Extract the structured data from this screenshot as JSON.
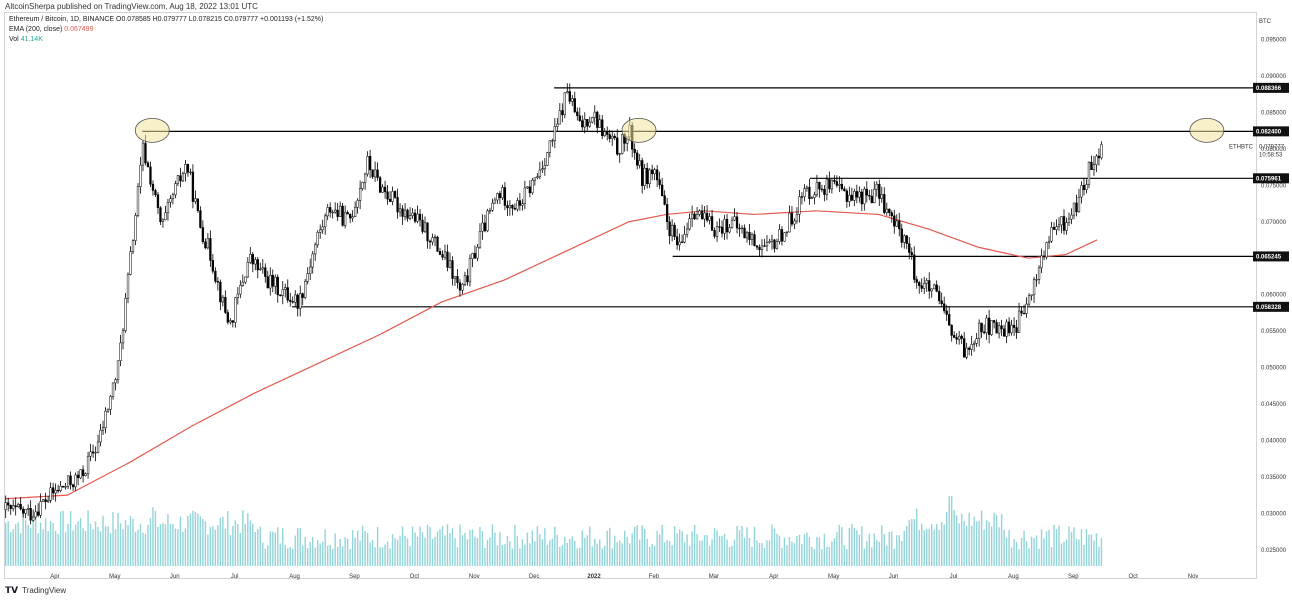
{
  "header": {
    "published": "AltcoinSherpa published on TradingView.com, Aug 18, 2022 13:01 UTC"
  },
  "legend": {
    "symbol_line": "Ethereum / Bitcoin, 1D, BINANCE",
    "ohlc": "O0.078585 H0.079777 L0.078215 C0.079777 +0.001193 (+1.52%)",
    "ema_label": "EMA (200, close)",
    "ema_value": "0.067499",
    "vol_label": "Vol",
    "vol_value": "41.14K"
  },
  "footer": {
    "brand": "TradingView"
  },
  "colors": {
    "ema": "#e2594d",
    "volume": "#7fcdd1",
    "candle": "#000000",
    "highlight": "#f3e39a"
  },
  "chart_data": {
    "type": "candlestick",
    "symbol": "ETHBTC",
    "symbol_tag": "ETHBTC",
    "countdown": "10:58:53",
    "currency": "BTC",
    "x_labels": [
      "Apr",
      "May",
      "Jun",
      "Jul",
      "Aug",
      "Sep",
      "Oct",
      "Nov",
      "Dec",
      "2022",
      "Feb",
      "Mar",
      "Apr",
      "May",
      "Jun",
      "Jul",
      "Aug",
      "Sep",
      "Oct",
      "Nov"
    ],
    "y_ticks": [
      "0.095000",
      "0.090000",
      "0.085000",
      "0.080000",
      "0.075000",
      "0.070000",
      "0.065000",
      "0.060000",
      "0.055000",
      "0.050000",
      "0.045000",
      "0.040000",
      "0.035000",
      "0.030000",
      "0.025000"
    ],
    "ylim": [
      0.0225,
      0.0985
    ],
    "price_levels": [
      {
        "value": "0.088366",
        "start": 0.44
      },
      {
        "value": "0.082400",
        "start": 0.11
      },
      {
        "value": "0.075961",
        "start": 0.645
      },
      {
        "value": "0.065245",
        "start": 0.535
      },
      {
        "value": "0.058328",
        "start": 0.23
      }
    ],
    "current_price": "0.079777",
    "highlights": [
      {
        "x": 0.11,
        "y": 0.0824
      },
      {
        "x": 0.5,
        "y": 0.0824
      },
      {
        "x": 0.955,
        "y": 0.0824
      }
    ],
    "price_path": [
      [
        0.0,
        0.0305
      ],
      [
        0.02,
        0.03
      ],
      [
        0.04,
        0.033
      ],
      [
        0.06,
        0.035
      ],
      [
        0.075,
        0.04
      ],
      [
        0.09,
        0.05
      ],
      [
        0.1,
        0.065
      ],
      [
        0.11,
        0.08
      ],
      [
        0.116,
        0.076
      ],
      [
        0.125,
        0.069
      ],
      [
        0.135,
        0.074
      ],
      [
        0.145,
        0.078
      ],
      [
        0.155,
        0.07
      ],
      [
        0.165,
        0.065
      ],
      [
        0.175,
        0.058
      ],
      [
        0.18,
        0.056
      ],
      [
        0.195,
        0.065
      ],
      [
        0.21,
        0.062
      ],
      [
        0.225,
        0.06
      ],
      [
        0.235,
        0.059
      ],
      [
        0.25,
        0.068
      ],
      [
        0.26,
        0.072
      ],
      [
        0.275,
        0.07
      ],
      [
        0.29,
        0.078
      ],
      [
        0.3,
        0.075
      ],
      [
        0.315,
        0.072
      ],
      [
        0.325,
        0.071
      ],
      [
        0.34,
        0.068
      ],
      [
        0.355,
        0.064
      ],
      [
        0.365,
        0.06
      ],
      [
        0.38,
        0.068
      ],
      [
        0.395,
        0.074
      ],
      [
        0.41,
        0.072
      ],
      [
        0.425,
        0.076
      ],
      [
        0.44,
        0.082
      ],
      [
        0.45,
        0.088
      ],
      [
        0.46,
        0.083
      ],
      [
        0.47,
        0.085
      ],
      [
        0.48,
        0.082
      ],
      [
        0.49,
        0.08
      ],
      [
        0.5,
        0.082
      ],
      [
        0.51,
        0.076
      ],
      [
        0.52,
        0.077
      ],
      [
        0.53,
        0.07
      ],
      [
        0.54,
        0.066
      ],
      [
        0.55,
        0.072
      ],
      [
        0.56,
        0.07
      ],
      [
        0.57,
        0.069
      ],
      [
        0.58,
        0.07
      ],
      [
        0.595,
        0.068
      ],
      [
        0.61,
        0.066
      ],
      [
        0.625,
        0.069
      ],
      [
        0.64,
        0.074
      ],
      [
        0.655,
        0.075
      ],
      [
        0.67,
        0.074
      ],
      [
        0.685,
        0.0735
      ],
      [
        0.7,
        0.074
      ],
      [
        0.71,
        0.07
      ],
      [
        0.72,
        0.068
      ],
      [
        0.73,
        0.062
      ],
      [
        0.745,
        0.06
      ],
      [
        0.76,
        0.054
      ],
      [
        0.77,
        0.052
      ],
      [
        0.78,
        0.056
      ],
      [
        0.795,
        0.055
      ],
      [
        0.81,
        0.056
      ],
      [
        0.82,
        0.059
      ],
      [
        0.83,
        0.065
      ],
      [
        0.84,
        0.069
      ],
      [
        0.85,
        0.07
      ],
      [
        0.86,
        0.073
      ],
      [
        0.87,
        0.078
      ],
      [
        0.875,
        0.08
      ],
      [
        0.88,
        0.0797
      ]
    ],
    "ema_path": [
      [
        0.0,
        0.032
      ],
      [
        0.05,
        0.0325
      ],
      [
        0.1,
        0.037
      ],
      [
        0.15,
        0.042
      ],
      [
        0.2,
        0.0465
      ],
      [
        0.25,
        0.0505
      ],
      [
        0.3,
        0.0545
      ],
      [
        0.35,
        0.059
      ],
      [
        0.4,
        0.062
      ],
      [
        0.45,
        0.066
      ],
      [
        0.5,
        0.07
      ],
      [
        0.53,
        0.071
      ],
      [
        0.56,
        0.0715
      ],
      [
        0.6,
        0.071
      ],
      [
        0.65,
        0.0715
      ],
      [
        0.7,
        0.071
      ],
      [
        0.74,
        0.069
      ],
      [
        0.78,
        0.0665
      ],
      [
        0.82,
        0.065
      ],
      [
        0.85,
        0.0655
      ],
      [
        0.875,
        0.0675
      ]
    ],
    "volume_spikes": [
      {
        "x": 0.118,
        "h": 0.42
      },
      {
        "x": 0.757,
        "h": 0.5
      },
      {
        "x": 0.715,
        "h": 0.22
      }
    ]
  }
}
